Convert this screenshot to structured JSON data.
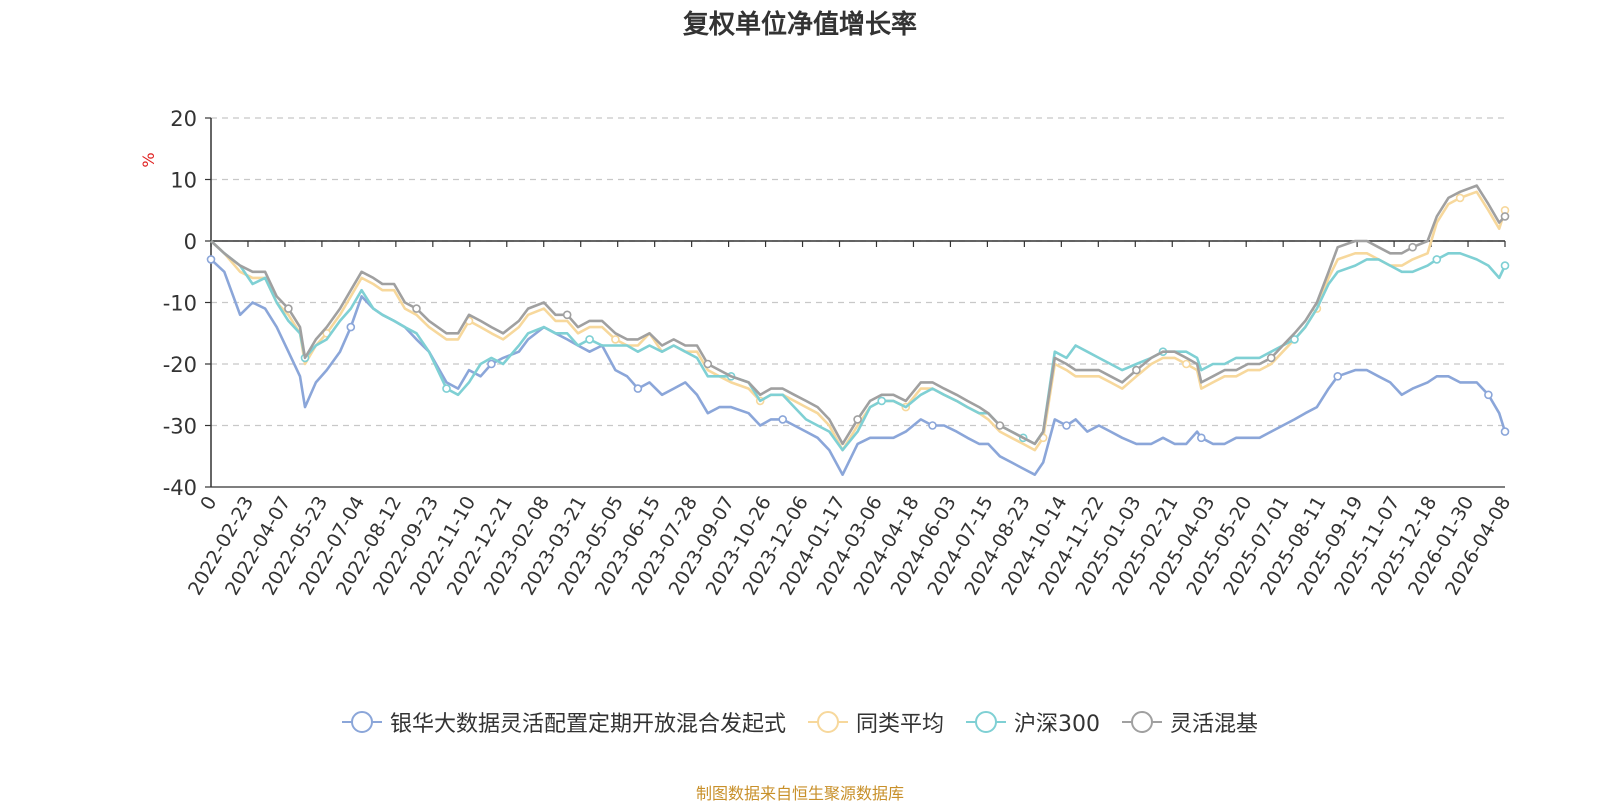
{
  "footer": {
    "source": "制图数据来自恒生聚源数据库"
  },
  "chart_data": {
    "type": "line",
    "title": "复权单位净值增长率",
    "ylabel": "%",
    "xlabel": "",
    "ylim": [
      -40,
      20
    ],
    "yticks": [
      20,
      10,
      0,
      -10,
      -20,
      -30,
      -40
    ],
    "grid": true,
    "legend_position": "bottom",
    "x_tick_labels": [
      "0",
      "2022-02-23",
      "2022-04-07",
      "2022-05-23",
      "2022-07-04",
      "2022-08-12",
      "2022-09-23",
      "2022-11-10",
      "2022-12-21",
      "2023-02-08",
      "2023-03-21",
      "2023-05-05",
      "2023-06-15",
      "2023-07-28",
      "2023-09-07",
      "2023-10-26",
      "2023-12-06",
      "2024-01-17",
      "2024-03-06",
      "2024-04-18",
      "2024-06-03",
      "2024-07-15",
      "2024-08-23",
      "2024-10-14",
      "2024-11-22",
      "2025-01-03",
      "2025-02-21",
      "2025-04-03",
      "2025-05-20",
      "2025-07-01",
      "2025-08-11",
      "2025-09-19",
      "2025-11-07",
      "2025-12-18",
      "2026-01-30",
      "2026-04-08"
    ],
    "x": [
      "2022-01-04",
      "2022-01-20",
      "2022-02-08",
      "2022-02-23",
      "2022-03-10",
      "2022-03-24",
      "2022-04-07",
      "2022-04-21",
      "2022-04-27",
      "2022-05-10",
      "2022-05-23",
      "2022-06-08",
      "2022-06-21",
      "2022-07-04",
      "2022-07-18",
      "2022-07-29",
      "2022-08-12",
      "2022-08-25",
      "2022-09-08",
      "2022-09-23",
      "2022-10-14",
      "2022-10-28",
      "2022-11-10",
      "2022-11-24",
      "2022-12-07",
      "2022-12-21",
      "2023-01-09",
      "2023-01-20",
      "2023-02-08",
      "2023-02-22",
      "2023-03-08",
      "2023-03-21",
      "2023-04-04",
      "2023-04-19",
      "2023-05-05",
      "2023-05-19",
      "2023-06-01",
      "2023-06-15",
      "2023-06-30",
      "2023-07-14",
      "2023-07-28",
      "2023-08-11",
      "2023-08-24",
      "2023-09-07",
      "2023-09-21",
      "2023-10-12",
      "2023-10-26",
      "2023-11-08",
      "2023-11-22",
      "2023-12-06",
      "2023-12-20",
      "2024-01-03",
      "2024-01-17",
      "2024-02-02",
      "2024-02-20",
      "2024-03-06",
      "2024-03-20",
      "2024-04-03",
      "2024-04-18",
      "2024-05-06",
      "2024-05-20",
      "2024-06-03",
      "2024-06-18",
      "2024-07-01",
      "2024-07-15",
      "2024-07-26",
      "2024-08-09",
      "2024-08-23",
      "2024-09-06",
      "2024-09-20",
      "2024-09-30",
      "2024-10-14",
      "2024-10-28",
      "2024-11-08",
      "2024-11-22",
      "2024-12-06",
      "2024-12-20",
      "2025-01-03",
      "2025-01-20",
      "2025-02-07",
      "2025-02-21",
      "2025-03-07",
      "2025-03-21",
      "2025-04-03",
      "2025-04-08",
      "2025-04-22",
      "2025-05-06",
      "2025-05-20",
      "2025-06-03",
      "2025-06-17",
      "2025-07-01",
      "2025-07-15",
      "2025-07-29",
      "2025-08-11",
      "2025-08-25",
      "2025-09-08",
      "2025-09-19",
      "2025-10-10",
      "2025-10-24",
      "2025-11-07",
      "2025-11-21",
      "2025-12-05",
      "2025-12-18",
      "2026-01-05",
      "2026-01-16",
      "2026-01-30",
      "2026-02-13",
      "2026-03-05",
      "2026-03-19",
      "2026-04-01",
      "2026-04-08"
    ],
    "series": [
      {
        "name": "银华大数据灵活配置定期开放混合发起式",
        "color": "#8ba6d9",
        "values": [
          -3,
          -5,
          -12,
          -10,
          -11,
          -14,
          -18,
          -22,
          -27,
          -23,
          -21,
          -18,
          -14,
          -9,
          -11,
          -12,
          -13,
          -14,
          -16,
          -18,
          -23,
          -24,
          -21,
          -22,
          -20,
          -19,
          -18,
          -16,
          -14,
          -15,
          -16,
          -17,
          -18,
          -17,
          -21,
          -22,
          -24,
          -23,
          -25,
          -24,
          -23,
          -25,
          -28,
          -27,
          -27,
          -28,
          -30,
          -29,
          -29,
          -30,
          -31,
          -32,
          -34,
          -38,
          -33,
          -32,
          -32,
          -32,
          -31,
          -29,
          -30,
          -30,
          -31,
          -32,
          -33,
          -33,
          -35,
          -36,
          -37,
          -38,
          -36,
          -29,
          -30,
          -29,
          -31,
          -30,
          -31,
          -32,
          -33,
          -33,
          -32,
          -33,
          -33,
          -31,
          -32,
          -33,
          -33,
          -32,
          -32,
          -32,
          -31,
          -30,
          -29,
          -28,
          -27,
          -24,
          -22,
          -21,
          -21,
          -22,
          -23,
          -25,
          -24,
          -23,
          -22,
          -22,
          -23,
          -23,
          -25,
          -28,
          -31
        ]
      },
      {
        "name": "同类平均",
        "color": "#f7d89c",
        "values": [
          0,
          -2,
          -5,
          -6,
          -6,
          -10,
          -12,
          -15,
          -20,
          -17,
          -15,
          -12,
          -9,
          -6,
          -7,
          -8,
          -8,
          -11,
          -12,
          -14,
          -16,
          -16,
          -13,
          -14,
          -15,
          -16,
          -14,
          -12,
          -11,
          -13,
          -13,
          -15,
          -14,
          -14,
          -16,
          -17,
          -17,
          -15,
          -18,
          -17,
          -18,
          -18,
          -21,
          -22,
          -23,
          -24,
          -26,
          -25,
          -25,
          -26,
          -27,
          -28,
          -30,
          -34,
          -30,
          -27,
          -26,
          -26,
          -27,
          -24,
          -24,
          -25,
          -26,
          -27,
          -28,
          -29,
          -31,
          -32,
          -33,
          -34,
          -32,
          -20,
          -21,
          -22,
          -22,
          -22,
          -23,
          -24,
          -22,
          -20,
          -19,
          -19,
          -20,
          -21,
          -24,
          -23,
          -22,
          -22,
          -21,
          -21,
          -20,
          -18,
          -16,
          -14,
          -11,
          -6,
          -3,
          -2,
          -2,
          -3,
          -4,
          -4,
          -3,
          -2,
          3,
          6,
          7,
          8,
          5,
          2,
          5
        ]
      },
      {
        "name": "沪深300",
        "color": "#7fd0d4",
        "values": [
          0,
          -2,
          -4,
          -7,
          -6,
          -10,
          -13,
          -15,
          -19,
          -17,
          -16,
          -13,
          -11,
          -8,
          -11,
          -12,
          -13,
          -14,
          -15,
          -18,
          -24,
          -25,
          -23,
          -20,
          -19,
          -20,
          -17,
          -15,
          -14,
          -15,
          -15,
          -17,
          -16,
          -17,
          -17,
          -17,
          -18,
          -17,
          -18,
          -17,
          -18,
          -19,
          -22,
          -22,
          -22,
          -23,
          -26,
          -25,
          -25,
          -27,
          -29,
          -30,
          -31,
          -34,
          -31,
          -27,
          -26,
          -26,
          -27,
          -25,
          -24,
          -25,
          -26,
          -27,
          -28,
          -28,
          -30,
          -31,
          -32,
          -33,
          -31,
          -18,
          -19,
          -17,
          -18,
          -19,
          -20,
          -21,
          -20,
          -19,
          -18,
          -18,
          -18,
          -19,
          -21,
          -20,
          -20,
          -19,
          -19,
          -19,
          -18,
          -17,
          -16,
          -14,
          -11,
          -7,
          -5,
          -4,
          -3,
          -3,
          -4,
          -5,
          -5,
          -4,
          -3,
          -2,
          -2,
          -3,
          -4,
          -6,
          -4
        ]
      },
      {
        "name": "灵活混基",
        "color": "#a0a0a0",
        "values": [
          0,
          -2,
          -4,
          -5,
          -5,
          -9,
          -11,
          -14,
          -19,
          -16,
          -14,
          -11,
          -8,
          -5,
          -6,
          -7,
          -7,
          -10,
          -11,
          -13,
          -15,
          -15,
          -12,
          -13,
          -14,
          -15,
          -13,
          -11,
          -10,
          -12,
          -12,
          -14,
          -13,
          -13,
          -15,
          -16,
          -16,
          -15,
          -17,
          -16,
          -17,
          -17,
          -20,
          -21,
          -22,
          -23,
          -25,
          -24,
          -24,
          -25,
          -26,
          -27,
          -29,
          -33,
          -29,
          -26,
          -25,
          -25,
          -26,
          -23,
          -23,
          -24,
          -25,
          -26,
          -27,
          -28,
          -30,
          -31,
          -32,
          -33,
          -31,
          -19,
          -20,
          -21,
          -21,
          -21,
          -22,
          -23,
          -21,
          -19,
          -18,
          -18,
          -19,
          -20,
          -23,
          -22,
          -21,
          -21,
          -20,
          -20,
          -19,
          -17,
          -15,
          -13,
          -10,
          -5,
          -1,
          0,
          0,
          -1,
          -2,
          -2,
          -1,
          0,
          4,
          7,
          8,
          9,
          6,
          3,
          4
        ]
      }
    ]
  }
}
